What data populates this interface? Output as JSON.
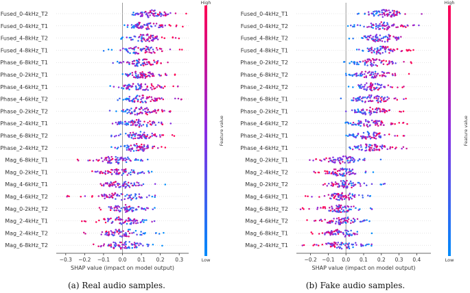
{
  "chart_data": [
    {
      "type": "scatter",
      "subtype": "shap-beeswarm",
      "caption": "(a) Real audio samples.",
      "xlabel": "SHAP value (impact on model output)",
      "xlim": [
        -0.35,
        0.35
      ],
      "xticks": [
        -0.3,
        -0.2,
        -0.1,
        0.0,
        0.1,
        0.2,
        0.3
      ],
      "xtick_labels": [
        "−0.3",
        "−0.2",
        "−0.1",
        "0.0",
        "0.1",
        "0.2",
        "0.3"
      ],
      "colorbar": {
        "title": "Feature value",
        "high": "High",
        "low": "Low"
      },
      "features": [
        {
          "name": "Fused_0-4kHz_T2",
          "range": [
            0.0,
            0.34
          ],
          "center": 0.15
        },
        {
          "name": "Fused_0-4kHz_T1",
          "range": [
            -0.01,
            0.32
          ],
          "center": 0.12
        },
        {
          "name": "Fused_4-8kHz_T2",
          "range": [
            -0.03,
            0.3
          ],
          "center": 0.12
        },
        {
          "name": "Fused_4-8kHz_T1",
          "range": [
            -0.1,
            0.33
          ],
          "center": 0.1
        },
        {
          "name": "Phase_6-8kHz_T1",
          "range": [
            -0.06,
            0.31
          ],
          "center": 0.1
        },
        {
          "name": "Phase_0-2kHz_T1",
          "range": [
            0.0,
            0.29
          ],
          "center": 0.1
        },
        {
          "name": "Phase_4-6kHz_T1",
          "range": [
            -0.07,
            0.35
          ],
          "center": 0.1
        },
        {
          "name": "Phase_4-6kHz_T2",
          "range": [
            -0.05,
            0.32
          ],
          "center": 0.1
        },
        {
          "name": "Phase_0-2kHz_T2",
          "range": [
            -0.07,
            0.28
          ],
          "center": 0.1
        },
        {
          "name": "Phase_2-4kHz_T1",
          "range": [
            -0.09,
            0.31
          ],
          "center": 0.09
        },
        {
          "name": "Phase_6-8kHz_T2",
          "range": [
            -0.06,
            0.3
          ],
          "center": 0.09
        },
        {
          "name": "Phase_2-4kHz_T2",
          "range": [
            -0.06,
            0.26
          ],
          "center": 0.08
        },
        {
          "name": "Mag_6-8kHz_T1",
          "range": [
            -0.24,
            0.16
          ],
          "center": -0.03
        },
        {
          "name": "Mag_0-2kHz_T1",
          "range": [
            -0.17,
            0.22
          ],
          "center": -0.01
        },
        {
          "name": "Mag_4-6kHz_T1",
          "range": [
            -0.13,
            0.23
          ],
          "center": 0.0
        },
        {
          "name": "Mag_4-6kHz_T2",
          "range": [
            -0.31,
            0.19
          ],
          "center": 0.0
        },
        {
          "name": "Mag_0-2kHz_T2",
          "range": [
            -0.2,
            0.2
          ],
          "center": 0.0
        },
        {
          "name": "Mag_2-4kHz_T1",
          "range": [
            -0.22,
            0.23
          ],
          "center": 0.0
        },
        {
          "name": "Mag_2-4kHz_T2",
          "range": [
            -0.21,
            0.22
          ],
          "center": 0.0
        },
        {
          "name": "Mag_6-8kHz_T2",
          "range": [
            -0.17,
            0.23
          ],
          "center": 0.0
        }
      ]
    },
    {
      "type": "scatter",
      "subtype": "shap-beeswarm",
      "caption": "(b) Fake audio samples.",
      "xlabel": "SHAP value (impact on model output)",
      "xlim": [
        -0.28,
        0.48
      ],
      "xticks": [
        -0.2,
        -0.1,
        0.0,
        0.1,
        0.2,
        0.3,
        0.4
      ],
      "xtick_labels": [
        "−0.2",
        "−0.1",
        "0.0",
        "0.1",
        "0.2",
        "0.3",
        "0.4"
      ],
      "colorbar": {
        "title": "Feature value",
        "high": "High",
        "low": "Low"
      },
      "features": [
        {
          "name": "Fused_0-4kHz_T1",
          "range": [
            0.05,
            0.43
          ],
          "center": 0.22
        },
        {
          "name": "Fused_0-4kHz_T2",
          "range": [
            0.0,
            0.45
          ],
          "center": 0.22
        },
        {
          "name": "Fused_4-8kHz_T2",
          "range": [
            0.0,
            0.42
          ],
          "center": 0.2
        },
        {
          "name": "Fused_4-8kHz_T1",
          "range": [
            0.06,
            0.41
          ],
          "center": 0.2
        },
        {
          "name": "Phase_0-2kHz_T2",
          "range": [
            -0.03,
            0.38
          ],
          "center": 0.15
        },
        {
          "name": "Phase_6-8kHz_T2",
          "range": [
            -0.01,
            0.39
          ],
          "center": 0.15
        },
        {
          "name": "Phase_2-4kHz_T2",
          "range": [
            0.0,
            0.37
          ],
          "center": 0.14
        },
        {
          "name": "Phase_6-8kHz_T1",
          "range": [
            -0.04,
            0.37
          ],
          "center": 0.15
        },
        {
          "name": "Phase_0-2kHz_T1",
          "range": [
            0.0,
            0.34
          ],
          "center": 0.14
        },
        {
          "name": "Phase_4-6kHz_T2",
          "range": [
            -0.01,
            0.35
          ],
          "center": 0.13
        },
        {
          "name": "Phase_2-4kHz_T1",
          "range": [
            -0.01,
            0.35
          ],
          "center": 0.13
        },
        {
          "name": "Phase_4-6kHz_T1",
          "range": [
            0.0,
            0.4
          ],
          "center": 0.14
        },
        {
          "name": "Mag_0-2kHz_T1",
          "range": [
            -0.22,
            0.21
          ],
          "center": -0.02
        },
        {
          "name": "Mag_2-4kHz_T2",
          "range": [
            -0.2,
            0.18
          ],
          "center": -0.02
        },
        {
          "name": "Mag_0-2kHz_T2",
          "range": [
            -0.16,
            0.22
          ],
          "center": -0.01
        },
        {
          "name": "Mag_4-6kHz_T1",
          "range": [
            -0.23,
            0.14
          ],
          "center": -0.02
        },
        {
          "name": "Mag_6-8kHz_T2",
          "range": [
            -0.26,
            0.17
          ],
          "center": -0.02
        },
        {
          "name": "Mag_4-6kHz_T2",
          "range": [
            -0.23,
            0.17
          ],
          "center": -0.02
        },
        {
          "name": "Mag_6-8kHz_T1",
          "range": [
            -0.21,
            0.15
          ],
          "center": -0.02
        },
        {
          "name": "Mag_2-4kHz_T1",
          "range": [
            -0.26,
            0.16
          ],
          "center": -0.02
        }
      ]
    }
  ],
  "colors": {
    "high": "#ff0052",
    "mid": "#8a2be2",
    "low": "#008bfb",
    "axis": "#333333",
    "zero_line": "#999999"
  }
}
